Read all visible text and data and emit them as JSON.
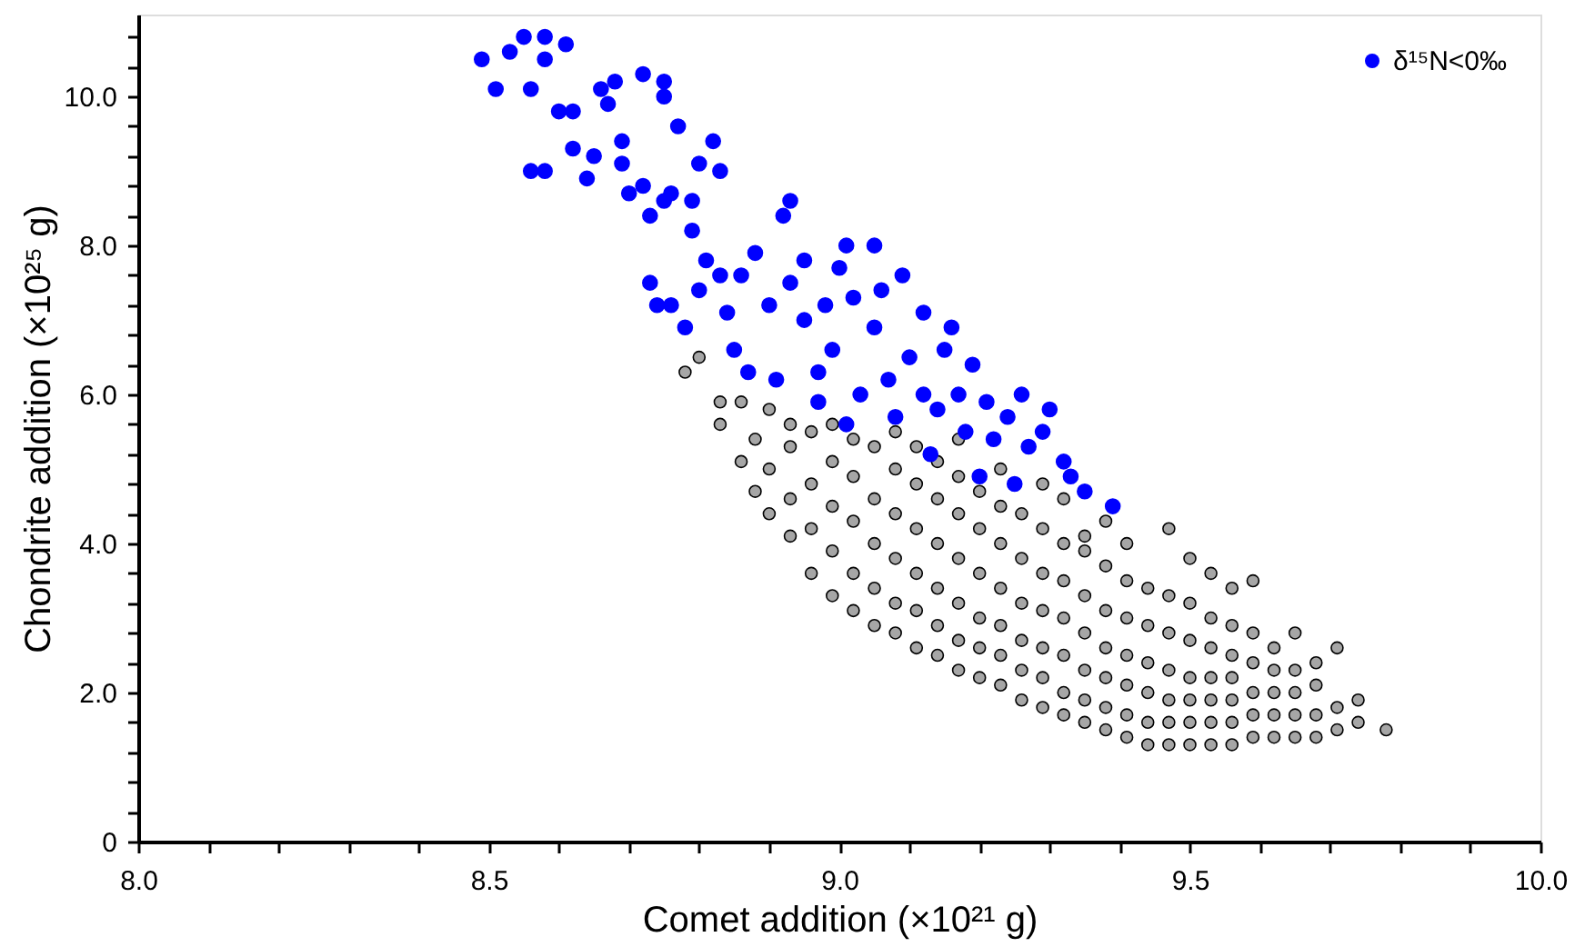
{
  "chart_data": {
    "type": "scatter",
    "xlabel": "Comet addition (×10²¹ g)",
    "ylabel": "Chondrite addition (×10²⁵ g)",
    "xlim": [
      8.0,
      10.0
    ],
    "ylim": [
      0,
      11.1
    ],
    "xticks": [
      {
        "value": 8.0,
        "label": "8.0"
      },
      {
        "value": 8.1,
        "label": null
      },
      {
        "value": 8.2,
        "label": null
      },
      {
        "value": 8.3,
        "label": null
      },
      {
        "value": 8.4,
        "label": null
      },
      {
        "value": 8.5,
        "label": "8.5"
      },
      {
        "value": 8.6,
        "label": null
      },
      {
        "value": 8.7,
        "label": null
      },
      {
        "value": 8.8,
        "label": null
      },
      {
        "value": 8.9,
        "label": null
      },
      {
        "value": 9.0,
        "label": "9.0"
      },
      {
        "value": 9.1,
        "label": null
      },
      {
        "value": 9.2,
        "label": null
      },
      {
        "value": 9.3,
        "label": null
      },
      {
        "value": 9.4,
        "label": null
      },
      {
        "value": 9.5,
        "label": "9.5"
      },
      {
        "value": 9.6,
        "label": null
      },
      {
        "value": 9.7,
        "label": null
      },
      {
        "value": 9.8,
        "label": null
      },
      {
        "value": 9.9,
        "label": null
      },
      {
        "value": 10.0,
        "label": "10.0"
      }
    ],
    "yticks": [
      0,
      {
        "value": 0.4,
        "label": null
      },
      {
        "value": 0.8,
        "label": null
      },
      {
        "value": 1.2,
        "label": null
      },
      {
        "value": 1.6,
        "label": null
      },
      {
        "value": 2,
        "label": "2.0"
      },
      {
        "value": 2.4,
        "label": null
      },
      {
        "value": 2.8,
        "label": null
      },
      {
        "value": 3.2,
        "label": null
      },
      {
        "value": 3.6,
        "label": null
      },
      {
        "value": 4,
        "label": "4.0"
      },
      {
        "value": 4.4,
        "label": null
      },
      {
        "value": 4.8,
        "label": null
      },
      {
        "value": 5.2,
        "label": null
      },
      {
        "value": 5.6,
        "label": null
      },
      {
        "value": 6,
        "label": "6.0"
      },
      {
        "value": 6.4,
        "label": null
      },
      {
        "value": 6.8,
        "label": null
      },
      {
        "value": 7.2,
        "label": null
      },
      {
        "value": 7.6,
        "label": null
      },
      {
        "value": 8,
        "label": "8.0"
      },
      {
        "value": 8.4,
        "label": null
      },
      {
        "value": 8.8,
        "label": null
      },
      {
        "value": 9.2,
        "label": null
      },
      {
        "value": 9.6,
        "label": null
      },
      {
        "value": 10,
        "label": "10.0"
      },
      {
        "value": 10.4,
        "label": null
      },
      {
        "value": 10.8,
        "label": null
      }
    ],
    "grid": false,
    "legend": "top right",
    "marker": "circle",
    "series": [
      {
        "color": "#a6a6a6",
        "x": [
          8.78,
          8.8,
          8.83,
          8.83,
          8.86,
          8.86,
          8.88,
          8.88,
          8.9,
          8.9,
          8.9,
          8.93,
          8.93,
          8.93,
          8.93,
          8.96,
          8.96,
          8.96,
          8.96,
          8.99,
          8.99,
          8.99,
          8.99,
          8.99,
          9.02,
          9.02,
          9.02,
          9.02,
          9.02,
          9.05,
          9.05,
          9.05,
          9.05,
          9.05,
          9.08,
          9.08,
          9.08,
          9.08,
          9.08,
          9.08,
          9.11,
          9.11,
          9.11,
          9.11,
          9.11,
          9.11,
          9.14,
          9.14,
          9.14,
          9.14,
          9.14,
          9.14,
          9.17,
          9.17,
          9.17,
          9.17,
          9.17,
          9.17,
          9.17,
          9.2,
          9.2,
          9.2,
          9.2,
          9.2,
          9.2,
          9.23,
          9.23,
          9.23,
          9.23,
          9.23,
          9.23,
          9.23,
          9.26,
          9.26,
          9.26,
          9.26,
          9.26,
          9.26,
          9.29,
          9.29,
          9.29,
          9.29,
          9.29,
          9.29,
          9.29,
          9.32,
          9.32,
          9.32,
          9.32,
          9.32,
          9.32,
          9.32,
          9.35,
          9.35,
          9.35,
          9.35,
          9.35,
          9.35,
          9.35,
          9.38,
          9.38,
          9.38,
          9.38,
          9.38,
          9.38,
          9.38,
          9.41,
          9.41,
          9.41,
          9.41,
          9.41,
          9.41,
          9.41,
          9.44,
          9.44,
          9.44,
          9.44,
          9.44,
          9.44,
          9.47,
          9.47,
          9.47,
          9.47,
          9.47,
          9.47,
          9.47,
          9.5,
          9.5,
          9.5,
          9.5,
          9.5,
          9.5,
          9.5,
          9.53,
          9.53,
          9.53,
          9.53,
          9.53,
          9.53,
          9.53,
          9.56,
          9.56,
          9.56,
          9.56,
          9.56,
          9.56,
          9.56,
          9.59,
          9.59,
          9.59,
          9.59,
          9.59,
          9.59,
          9.62,
          9.62,
          9.62,
          9.62,
          9.62,
          9.65,
          9.65,
          9.65,
          9.65,
          9.65,
          9.68,
          9.68,
          9.68,
          9.68,
          9.71,
          9.71,
          9.71,
          9.74,
          9.74,
          9.78
        ],
        "values": [
          6.3,
          6.5,
          5.9,
          5.6,
          5.1,
          5.9,
          4.7,
          5.4,
          4.4,
          5.0,
          5.8,
          4.1,
          4.6,
          5.3,
          5.6,
          3.6,
          4.2,
          4.8,
          5.5,
          3.3,
          3.9,
          4.5,
          5.1,
          5.6,
          3.1,
          3.6,
          4.3,
          4.9,
          5.4,
          2.9,
          3.4,
          4.0,
          4.6,
          5.3,
          2.8,
          3.2,
          3.8,
          4.4,
          5.0,
          5.5,
          2.6,
          3.1,
          3.6,
          4.2,
          4.8,
          5.3,
          2.5,
          2.9,
          3.4,
          4.0,
          4.6,
          5.1,
          2.3,
          2.7,
          3.2,
          3.8,
          4.4,
          4.9,
          5.4,
          2.2,
          2.6,
          3.0,
          3.6,
          4.2,
          4.7,
          2.1,
          2.5,
          2.9,
          3.4,
          4.0,
          4.5,
          5.0,
          1.9,
          2.3,
          2.7,
          3.2,
          3.8,
          4.4,
          1.8,
          2.2,
          2.6,
          3.1,
          3.6,
          4.2,
          4.8,
          1.7,
          2.0,
          2.5,
          3.0,
          3.5,
          4.0,
          4.6,
          1.6,
          1.9,
          2.3,
          2.8,
          3.3,
          3.9,
          4.1,
          1.5,
          1.8,
          2.2,
          2.6,
          3.1,
          3.7,
          4.3,
          1.4,
          1.7,
          2.1,
          2.5,
          3.0,
          3.5,
          4.0,
          1.3,
          1.6,
          2.0,
          2.4,
          2.9,
          3.4,
          1.3,
          1.6,
          1.9,
          2.3,
          2.8,
          3.3,
          4.2,
          1.3,
          1.6,
          1.9,
          2.2,
          2.7,
          3.2,
          3.8,
          1.3,
          1.6,
          1.9,
          2.2,
          2.6,
          3.0,
          3.6,
          1.3,
          1.6,
          1.9,
          2.2,
          2.5,
          2.9,
          3.4,
          1.4,
          1.7,
          2.0,
          2.4,
          2.8,
          3.5,
          1.4,
          1.7,
          2.0,
          2.3,
          2.6,
          1.4,
          1.7,
          2.0,
          2.3,
          2.8,
          1.4,
          1.7,
          2.1,
          2.4,
          1.5,
          1.8,
          2.6,
          1.6,
          1.9,
          1.5
        ]
      },
      {
        "name": "δ¹⁵N<0‰",
        "color": "#0000ff",
        "x": [
          8.49,
          8.51,
          8.53,
          8.55,
          8.56,
          8.58,
          8.58,
          8.61,
          8.66,
          8.68,
          8.72,
          8.75,
          8.75,
          8.6,
          8.62,
          8.77,
          8.67,
          8.56,
          8.58,
          8.62,
          8.64,
          8.65,
          8.69,
          8.69,
          8.7,
          8.72,
          8.73,
          8.75,
          8.76,
          8.79,
          8.8,
          8.82,
          8.83,
          8.79,
          8.81,
          8.83,
          8.73,
          8.74,
          8.76,
          8.78,
          8.8,
          8.84,
          8.85,
          8.87,
          8.86,
          8.88,
          8.9,
          8.92,
          8.93,
          8.91,
          8.93,
          8.95,
          8.95,
          8.97,
          8.98,
          9.0,
          9.01,
          8.99,
          9.02,
          9.03,
          9.05,
          9.06,
          9.07,
          9.08,
          9.1,
          9.12,
          9.12,
          9.14,
          9.15,
          9.17,
          9.18,
          9.19,
          9.21,
          9.22,
          9.24,
          9.26,
          9.27,
          9.29,
          9.3,
          9.32,
          9.33,
          9.35,
          9.39,
          9.25,
          9.16,
          9.05,
          9.09,
          8.97,
          9.01,
          9.13,
          9.2
        ],
        "values": [
          10.5,
          10.1,
          10.6,
          10.8,
          10.1,
          10.8,
          10.5,
          10.7,
          10.1,
          10.2,
          10.3,
          10.2,
          10.0,
          9.8,
          9.8,
          9.6,
          9.9,
          9.0,
          9.0,
          9.3,
          8.9,
          9.2,
          9.1,
          9.4,
          8.7,
          8.8,
          8.4,
          8.6,
          8.7,
          8.6,
          9.1,
          9.4,
          9.0,
          8.2,
          7.8,
          7.6,
          7.5,
          7.2,
          7.2,
          6.9,
          7.4,
          7.1,
          6.6,
          6.3,
          7.6,
          7.9,
          7.2,
          8.4,
          8.6,
          6.2,
          7.5,
          7.0,
          7.8,
          6.3,
          7.2,
          7.7,
          8.0,
          6.6,
          7.3,
          6.0,
          6.9,
          7.4,
          6.2,
          5.7,
          6.5,
          6.0,
          7.1,
          5.8,
          6.6,
          6.0,
          5.5,
          6.4,
          5.9,
          5.4,
          5.7,
          6.0,
          5.3,
          5.5,
          5.8,
          5.1,
          4.9,
          4.7,
          4.5,
          4.8,
          6.9,
          8.0,
          7.6,
          5.9,
          5.6,
          5.2,
          4.9
        ]
      }
    ]
  }
}
